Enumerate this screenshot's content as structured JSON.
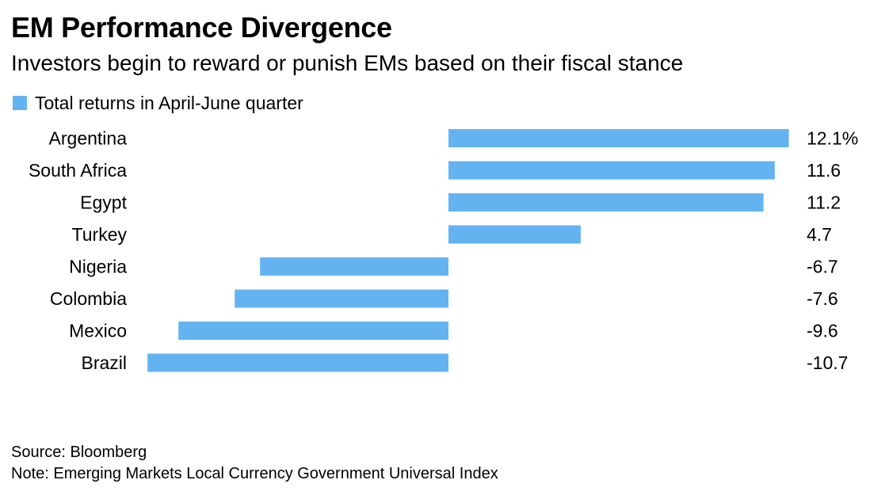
{
  "header": {
    "title": "EM Performance Divergence",
    "subtitle": "Investors begin to reward or punish EMs based on their fiscal stance"
  },
  "legend": {
    "label": "Total returns in April-June quarter"
  },
  "footer": {
    "source": "Source: Bloomberg",
    "note": "Note: Emerging Markets Local Currency Government Universal Index"
  },
  "colors": {
    "bar": "#63b3f1"
  },
  "chart_data": {
    "type": "bar",
    "orientation": "horizontal",
    "categories": [
      "Argentina",
      "South Africa",
      "Egypt",
      "Turkey",
      "Nigeria",
      "Colombia",
      "Mexico",
      "Brazil"
    ],
    "series": [
      {
        "name": "Total returns in April-June quarter",
        "values": [
          12.1,
          11.6,
          11.2,
          4.7,
          -6.7,
          -7.6,
          -9.6,
          -10.7
        ],
        "value_labels": [
          "12.1%",
          "11.6",
          "11.2",
          "4.7",
          "-6.7",
          "-7.6",
          "-9.6",
          "-10.7"
        ]
      }
    ],
    "title": "EM Performance Divergence",
    "xlabel": "",
    "ylabel": "",
    "grid": false,
    "legend_position": "top-left"
  }
}
